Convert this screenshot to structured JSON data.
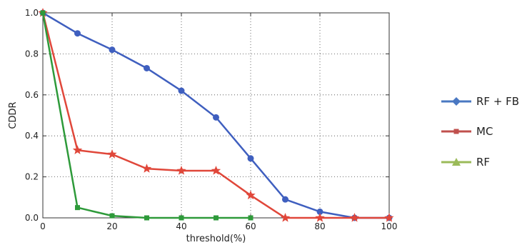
{
  "chart_data": {
    "type": "line",
    "xlabel": "threshold(%)",
    "ylabel": "CDDR",
    "xlim": [
      0,
      100
    ],
    "ylim": [
      0,
      1.0
    ],
    "xticks": [
      "0",
      "20",
      "40",
      "60",
      "80",
      "100"
    ],
    "yticks": [
      "0.0",
      "0.2",
      "0.4",
      "0.6",
      "0.8",
      "1.0"
    ],
    "grid": true,
    "legend_position": "right",
    "x": [
      0,
      10,
      20,
      30,
      40,
      50,
      60,
      70,
      80,
      90,
      100
    ],
    "series": [
      {
        "name": "RF + FB",
        "color": "#3f5fbf",
        "marker": "circle",
        "values": [
          1.0,
          0.9,
          0.82,
          0.73,
          0.62,
          0.49,
          0.29,
          0.09,
          0.03,
          0.0,
          0.0
        ]
      },
      {
        "name": "MC",
        "color": "#e0473a",
        "marker": "star",
        "values": [
          1.0,
          0.33,
          0.31,
          0.24,
          0.23,
          0.23,
          0.11,
          0.0,
          0.0,
          0.0,
          0.0
        ]
      },
      {
        "name": "RF",
        "color": "#2e9a3a",
        "marker": "square",
        "values": [
          1.0,
          0.05,
          0.01,
          0.0,
          0.0,
          0.0,
          0.0,
          null,
          null,
          null,
          null
        ]
      }
    ],
    "legend": [
      {
        "name": "RF + FB",
        "color": "#4a78c2",
        "marker": "diamond"
      },
      {
        "name": "MC",
        "color": "#c0504d",
        "marker": "square"
      },
      {
        "name": "RF",
        "color": "#9bbb59",
        "marker": "triangle"
      }
    ]
  }
}
